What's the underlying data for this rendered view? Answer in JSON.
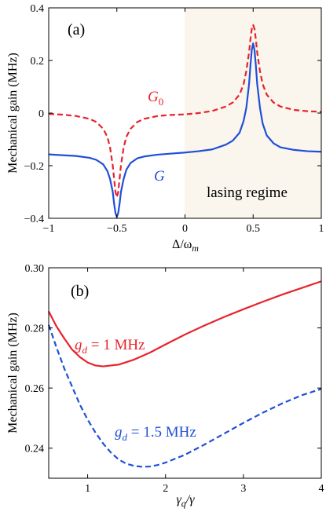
{
  "chart_data": [
    {
      "type": "line",
      "panel_label": "(a)",
      "ylabel": "Mechanical gain (MHz)",
      "xlabel": "Δ/ω",
      "xlabel_sub": "m",
      "xlim": [
        -1,
        1
      ],
      "ylim": [
        -0.4,
        0.4
      ],
      "xticks": [
        -1,
        -0.5,
        0,
        0.5,
        1
      ],
      "xtick_labels": [
        "−1",
        "−0.5",
        "0",
        "0.5",
        "1"
      ],
      "yticks": [
        -0.4,
        -0.2,
        0,
        0.2,
        0.4
      ],
      "ytick_labels": [
        "−0.4",
        "−0.2",
        "0",
        "0.2",
        "0.4"
      ],
      "shaded_region": {
        "x": [
          0,
          1
        ],
        "color": "#faf6ee",
        "label": "lasing regime"
      },
      "series": [
        {
          "name": "G₀",
          "label_main": "G",
          "label_sub": "0",
          "color": "#e8232b",
          "style": "dashed",
          "x": [
            -1.0,
            -0.9,
            -0.8,
            -0.7,
            -0.65,
            -0.6,
            -0.57,
            -0.55,
            -0.53,
            -0.52,
            -0.51,
            -0.5,
            -0.49,
            -0.48,
            -0.47,
            -0.45,
            -0.43,
            -0.4,
            -0.35,
            -0.3,
            -0.2,
            -0.1,
            0.0,
            0.1,
            0.2,
            0.3,
            0.35,
            0.4,
            0.43,
            0.45,
            0.47,
            0.48,
            0.49,
            0.5,
            0.51,
            0.52,
            0.53,
            0.55,
            0.57,
            0.6,
            0.65,
            0.7,
            0.8,
            0.9,
            1.0
          ],
          "y": [
            -0.003,
            -0.006,
            -0.011,
            -0.022,
            -0.034,
            -0.06,
            -0.09,
            -0.13,
            -0.2,
            -0.25,
            -0.3,
            -0.32,
            -0.3,
            -0.25,
            -0.2,
            -0.13,
            -0.09,
            -0.06,
            -0.034,
            -0.022,
            -0.011,
            -0.007,
            -0.005,
            0.0,
            0.008,
            0.025,
            0.04,
            0.07,
            0.11,
            0.16,
            0.23,
            0.28,
            0.32,
            0.335,
            0.32,
            0.28,
            0.23,
            0.16,
            0.11,
            0.07,
            0.04,
            0.025,
            0.012,
            0.007,
            0.005
          ]
        },
        {
          "name": "G",
          "label_main": "G",
          "label_sub": "",
          "color": "#1f4fd6",
          "style": "solid",
          "x": [
            -1.0,
            -0.9,
            -0.8,
            -0.7,
            -0.65,
            -0.6,
            -0.57,
            -0.55,
            -0.53,
            -0.52,
            -0.51,
            -0.5,
            -0.49,
            -0.48,
            -0.47,
            -0.45,
            -0.43,
            -0.4,
            -0.35,
            -0.3,
            -0.2,
            -0.1,
            0.0,
            0.1,
            0.2,
            0.3,
            0.35,
            0.4,
            0.43,
            0.45,
            0.47,
            0.48,
            0.49,
            0.5,
            0.51,
            0.52,
            0.53,
            0.55,
            0.57,
            0.6,
            0.65,
            0.7,
            0.8,
            0.9,
            1.0
          ],
          "y": [
            -0.157,
            -0.16,
            -0.163,
            -0.17,
            -0.178,
            -0.195,
            -0.22,
            -0.25,
            -0.3,
            -0.345,
            -0.38,
            -0.395,
            -0.38,
            -0.345,
            -0.3,
            -0.25,
            -0.215,
            -0.19,
            -0.172,
            -0.165,
            -0.158,
            -0.154,
            -0.15,
            -0.145,
            -0.138,
            -0.12,
            -0.105,
            -0.075,
            -0.03,
            0.02,
            0.11,
            0.18,
            0.24,
            0.265,
            0.24,
            0.18,
            0.11,
            0.02,
            -0.04,
            -0.085,
            -0.115,
            -0.13,
            -0.14,
            -0.145,
            -0.147
          ]
        }
      ]
    },
    {
      "type": "line",
      "panel_label": "(b)",
      "ylabel": "Mechanical gain (MHz)",
      "xlabel": "γ",
      "xlabel_sub": "q",
      "xlabel_rest": "/γ",
      "xlim": [
        0.5,
        4
      ],
      "ylim": [
        0.23,
        0.3
      ],
      "xticks": [
        1,
        2,
        3,
        4
      ],
      "xtick_labels": [
        "1",
        "2",
        "3",
        "4"
      ],
      "yticks": [
        0.24,
        0.26,
        0.28,
        0.3
      ],
      "ytick_labels": [
        "0.24",
        "0.26",
        "0.28",
        "0.30"
      ],
      "series": [
        {
          "name": "g_d = 1 MHz",
          "label_var": "g",
          "label_sub": "d",
          "label_rest": " = 1 MHz",
          "color": "#e8232b",
          "style": "solid",
          "x": [
            0.5,
            0.6,
            0.7,
            0.8,
            0.9,
            1.0,
            1.1,
            1.2,
            1.4,
            1.6,
            1.8,
            2.0,
            2.25,
            2.5,
            2.75,
            3.0,
            3.25,
            3.5,
            3.75,
            4.0
          ],
          "y": [
            0.2855,
            0.2805,
            0.2765,
            0.2728,
            0.2703,
            0.2685,
            0.2675,
            0.2672,
            0.2678,
            0.2695,
            0.2718,
            0.2745,
            0.2778,
            0.2808,
            0.2836,
            0.2862,
            0.2887,
            0.2911,
            0.2933,
            0.2955
          ]
        },
        {
          "name": "g_d = 1.5 MHz",
          "label_var": "g",
          "label_sub": "d",
          "label_rest": " = 1.5 MHz",
          "color": "#1f4fd6",
          "style": "dashed",
          "x": [
            0.5,
            0.6,
            0.7,
            0.8,
            0.9,
            1.0,
            1.1,
            1.2,
            1.3,
            1.4,
            1.5,
            1.6,
            1.7,
            1.8,
            1.9,
            2.0,
            2.25,
            2.5,
            2.75,
            3.0,
            3.25,
            3.5,
            3.75,
            4.0
          ],
          "y": [
            0.281,
            0.2735,
            0.2665,
            0.2605,
            0.2545,
            0.2495,
            0.2452,
            0.2415,
            0.2385,
            0.2362,
            0.2348,
            0.2341,
            0.2338,
            0.2339,
            0.2344,
            0.2352,
            0.2378,
            0.2412,
            0.2448,
            0.2484,
            0.2518,
            0.2549,
            0.2576,
            0.2597
          ]
        }
      ]
    }
  ]
}
